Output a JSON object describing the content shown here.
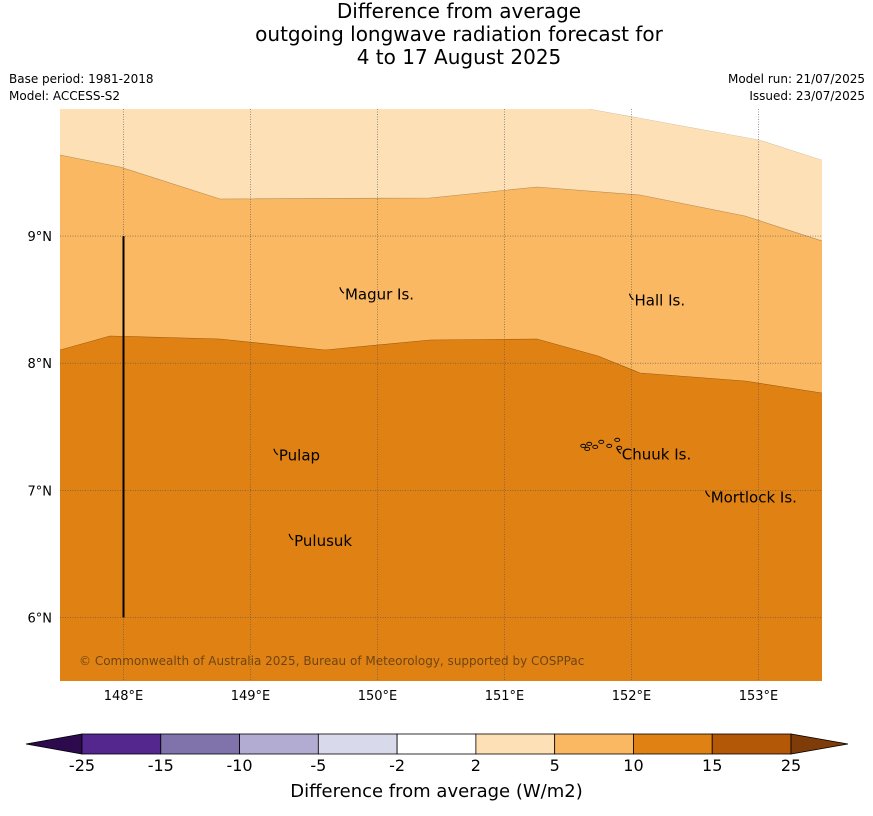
{
  "header": {
    "title_lines": [
      "Difference from average",
      "outgoing longwave radiation forecast for",
      "4 to 17 August 2025"
    ],
    "base_period": "Base period: 1981-2018",
    "model": "Model: ACCESS-S2",
    "model_run": "Model run: 21/07/2025",
    "issued": "Issued: 23/07/2025"
  },
  "map": {
    "lon_range": [
      147.5,
      153.5
    ],
    "lat_range": [
      5.5,
      10.0
    ],
    "lon_ticks": [
      "148°E",
      "149°E",
      "150°E",
      "151°E",
      "152°E",
      "153°E"
    ],
    "lon_tick_values": [
      148,
      149,
      150,
      151,
      152,
      153
    ],
    "lat_ticks": [
      "9°N",
      "8°N",
      "7°N",
      "6°N"
    ],
    "lat_tick_values": [
      9,
      8,
      7,
      6
    ],
    "places": [
      {
        "name": "Magur Is.",
        "lon": 149.72,
        "lat": 8.55
      },
      {
        "name": "Hall Is.",
        "lon": 152.0,
        "lat": 8.5
      },
      {
        "name": "Pulap",
        "lon": 149.2,
        "lat": 7.28
      },
      {
        "name": "Chuuk Is.",
        "lon": 151.9,
        "lat": 7.29
      },
      {
        "name": "Mortlock Is.",
        "lon": 152.6,
        "lat": 6.95
      },
      {
        "name": "Pulusuk",
        "lon": 149.32,
        "lat": 6.61
      }
    ],
    "marker_line": {
      "lon": 148.0,
      "lat_from": 6.0,
      "lat_to": 9.0
    },
    "copyright": "© Commonwealth of Australia 2025, Bureau of Meteorology, supported by COSPPac",
    "colors": {
      "band_2_5": "#fde0b5",
      "band_5_10": "#fbb862",
      "band_10_15": "#e08213"
    }
  },
  "colorbar": {
    "title": "Difference from average (W/m2)",
    "labels": [
      "-25",
      "-15",
      "-10",
      "-5",
      "-2",
      "2",
      "5",
      "10",
      "15",
      "25"
    ],
    "colors": [
      "#2d0a4e",
      "#54278f",
      "#8073ac",
      "#b2abd2",
      "#d8daeb",
      "#ffffff",
      "#fde0b5",
      "#fbb862",
      "#e08213",
      "#b35806",
      "#7f3b08"
    ]
  }
}
